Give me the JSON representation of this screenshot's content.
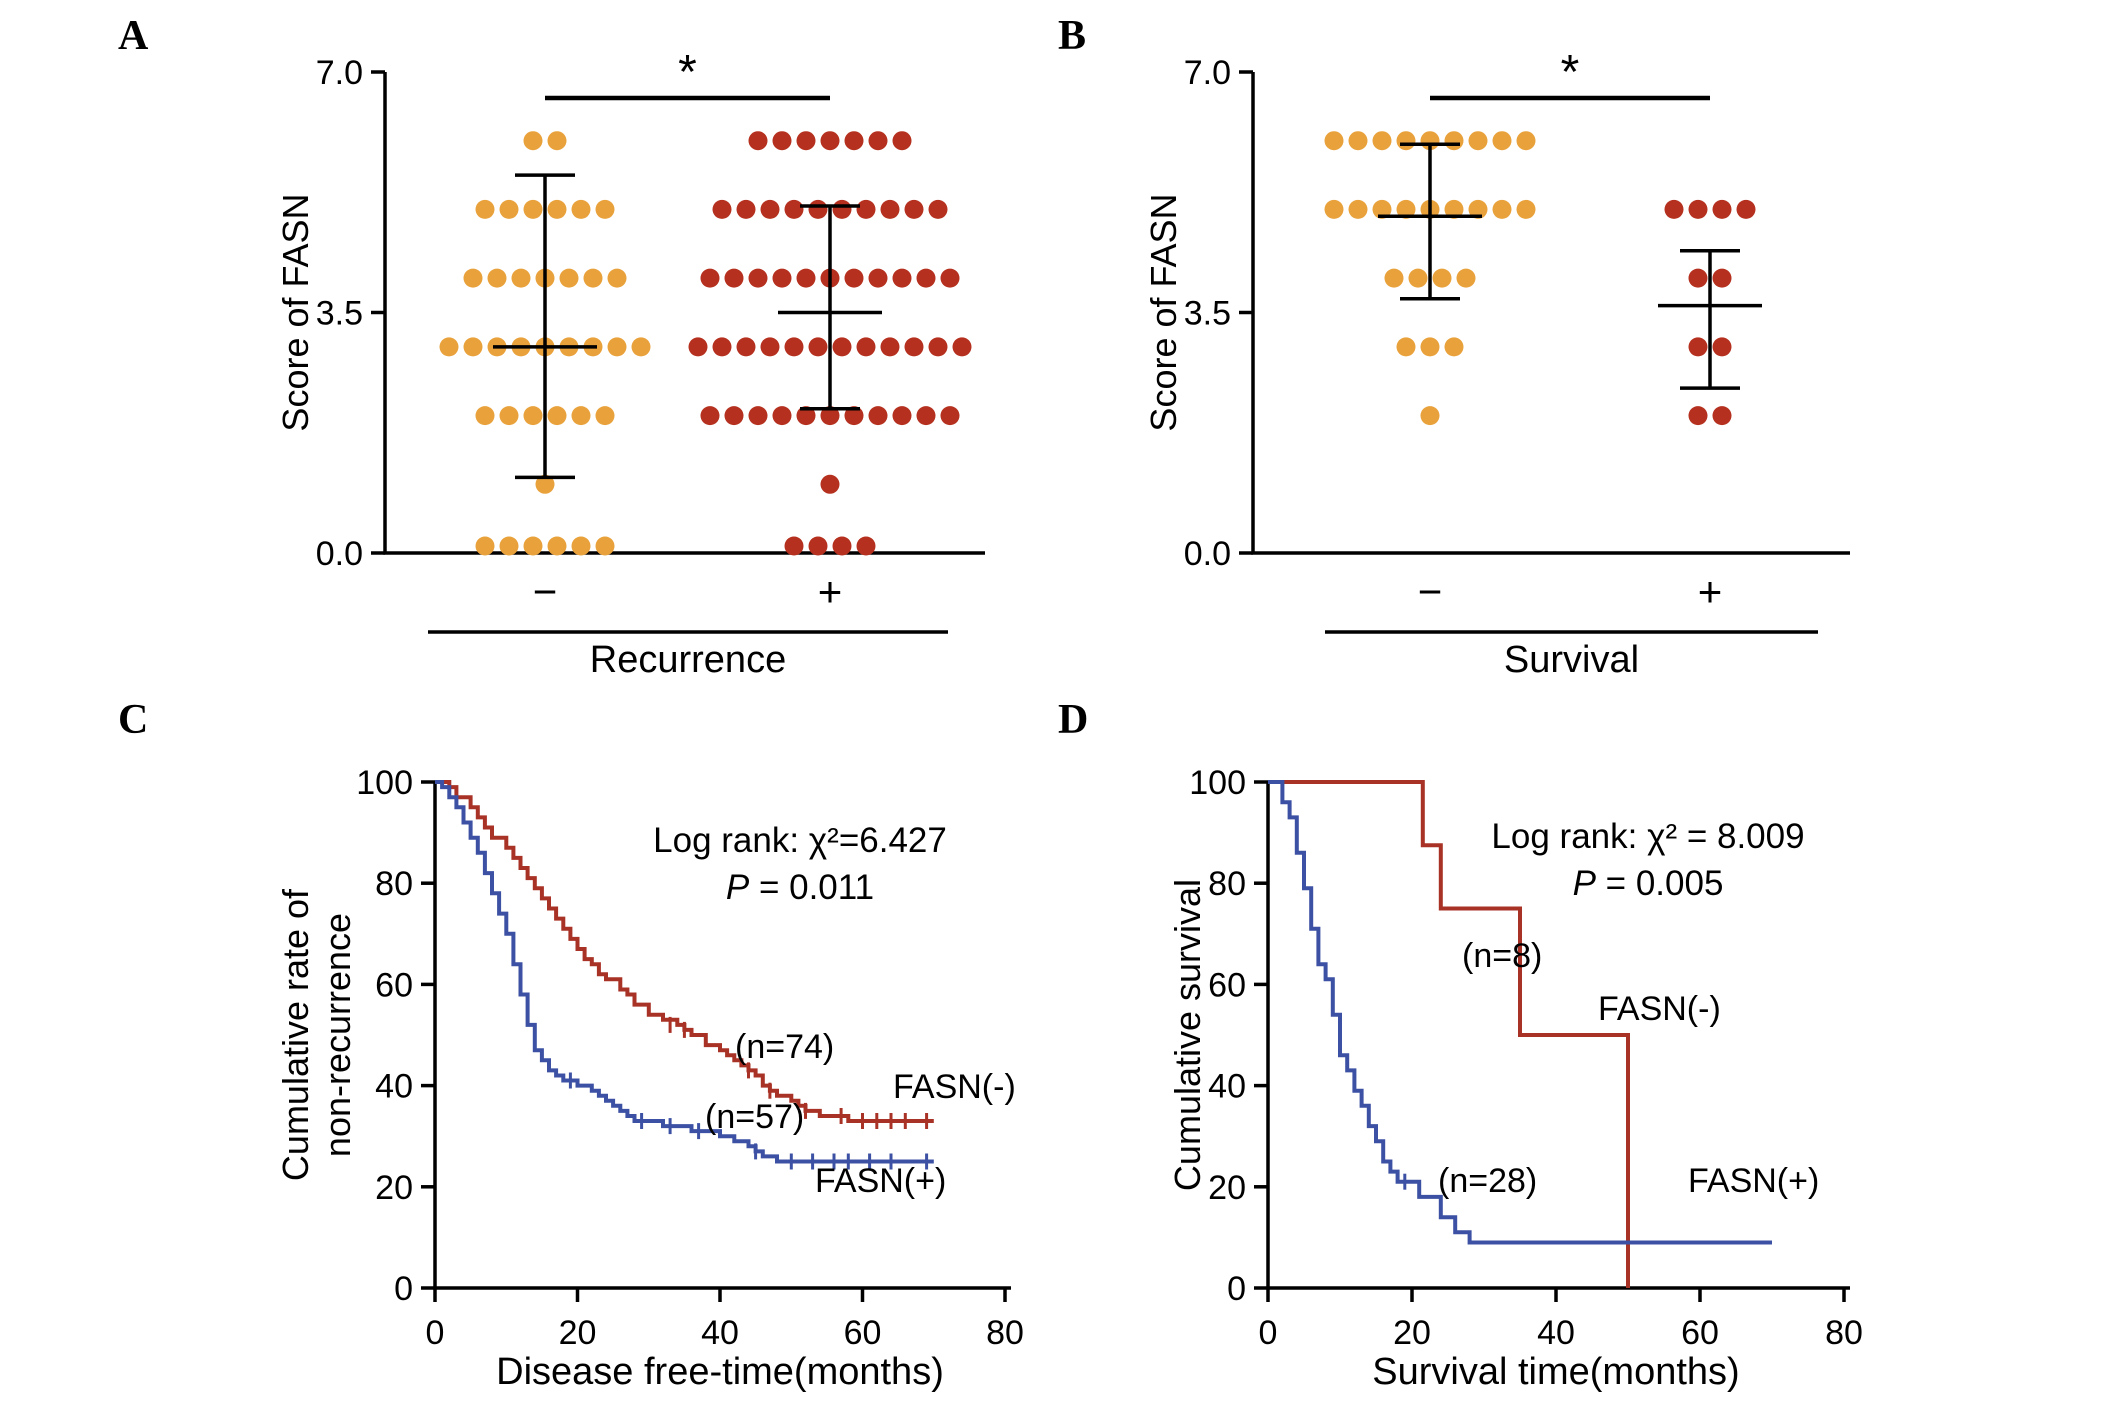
{
  "panel_letters": [
    "A",
    "B",
    "C",
    "D"
  ],
  "colors": {
    "orange_dot": "#E9A23B",
    "red_dot": "#B5301E",
    "red_curve": "#A93226",
    "blue_curve": "#3C51A3",
    "axis": "#000000",
    "text": "#000000"
  },
  "chart_data": [
    {
      "panel_letter": "A",
      "type": "scatter",
      "ylabel": "Score of FASN",
      "ylim": [
        0,
        7
      ],
      "yticks": [
        0,
        3.5,
        7
      ],
      "ytick_labels": [
        "0.0",
        "3.5",
        "7.0"
      ],
      "xlabel": "Recurrence",
      "significance": "*",
      "groups": [
        {
          "label": "−",
          "color_key": "orange_dot",
          "dot_rows": [
            [
              6,
              2
            ],
            [
              5,
              6
            ],
            [
              4,
              7
            ],
            [
              3,
              9
            ],
            [
              2,
              6
            ],
            [
              1,
              1
            ],
            [
              0,
              6
            ]
          ],
          "mean": 3.0,
          "upper": 5.5,
          "lower": 1.1
        },
        {
          "label": "+",
          "color_key": "red_dot",
          "dot_rows": [
            [
              6,
              7
            ],
            [
              5,
              10
            ],
            [
              4,
              11
            ],
            [
              3,
              12
            ],
            [
              2,
              11
            ],
            [
              1,
              1
            ],
            [
              0,
              4
            ]
          ],
          "mean": 3.5,
          "upper": 5.05,
          "lower": 2.1
        }
      ]
    },
    {
      "panel_letter": "B",
      "type": "scatter",
      "ylabel": "Score of FASN",
      "ylim": [
        0,
        7
      ],
      "yticks": [
        0,
        3.5,
        7
      ],
      "ytick_labels": [
        "0.0",
        "3.5",
        "7.0"
      ],
      "xlabel": "Survival",
      "significance": "*",
      "groups": [
        {
          "label": "−",
          "color_key": "orange_dot",
          "dot_rows": [
            [
              6,
              9
            ],
            [
              5,
              9
            ],
            [
              4,
              4
            ],
            [
              3,
              3
            ],
            [
              2,
              1
            ]
          ],
          "mean": 4.9,
          "upper": 5.95,
          "lower": 3.7
        },
        {
          "label": "+",
          "color_key": "red_dot",
          "dot_rows": [
            [
              5,
              4
            ],
            [
              4,
              2
            ],
            [
              3,
              2
            ],
            [
              2,
              2
            ]
          ],
          "mean": 3.6,
          "upper": 4.4,
          "lower": 2.4
        }
      ]
    },
    {
      "panel_letter": "C",
      "type": "km",
      "ylabel_lines": [
        "Cumulative rate of",
        "non-recurrence"
      ],
      "xlabel": "Disease free-time(months)",
      "xlim": [
        0,
        80
      ],
      "ylim": [
        0,
        100
      ],
      "xticks": [
        0,
        20,
        40,
        60,
        80
      ],
      "yticks": [
        0,
        20,
        40,
        60,
        80,
        100
      ],
      "annotation_lines": [
        "Log rank: χ²=6.427",
        "P = 0.011"
      ],
      "series": [
        {
          "name": "FASN(-)",
          "n_label": "(n=74)",
          "color_key": "red_curve",
          "points": [
            [
              0,
              100
            ],
            [
              2,
              99
            ],
            [
              3,
              97
            ],
            [
              5,
              95
            ],
            [
              6,
              93
            ],
            [
              7,
              91
            ],
            [
              8,
              89
            ],
            [
              10,
              87
            ],
            [
              11,
              85
            ],
            [
              12,
              83
            ],
            [
              13,
              81
            ],
            [
              14,
              79
            ],
            [
              15,
              77
            ],
            [
              16,
              75
            ],
            [
              17,
              73
            ],
            [
              18,
              71
            ],
            [
              19,
              69
            ],
            [
              20,
              67
            ],
            [
              21,
              65
            ],
            [
              22,
              64
            ],
            [
              23,
              62
            ],
            [
              24,
              61
            ],
            [
              26,
              59
            ],
            [
              27,
              58
            ],
            [
              28,
              56
            ],
            [
              30,
              54
            ],
            [
              32,
              53
            ],
            [
              34,
              52
            ],
            [
              35,
              51
            ],
            [
              36,
              50
            ],
            [
              38,
              48
            ],
            [
              40,
              47
            ],
            [
              41,
              46
            ],
            [
              42,
              45
            ],
            [
              43,
              44
            ],
            [
              44,
              43
            ],
            [
              45,
              42
            ],
            [
              46,
              40
            ],
            [
              47,
              39
            ],
            [
              48,
              38
            ],
            [
              50,
              37
            ],
            [
              51,
              36
            ],
            [
              52,
              35
            ],
            [
              54,
              34
            ],
            [
              58,
              33
            ],
            [
              70,
              33
            ]
          ],
          "censor": [
            [
              33,
              52
            ],
            [
              35,
              51
            ],
            [
              44,
              43
            ],
            [
              47,
              39
            ],
            [
              52,
              35
            ],
            [
              57,
              34
            ],
            [
              60,
              33
            ],
            [
              62,
              33
            ],
            [
              64,
              33
            ],
            [
              66,
              33
            ],
            [
              69,
              33
            ]
          ]
        },
        {
          "name": "FASN(+)",
          "n_label": "(n=57)",
          "color_key": "blue_curve",
          "points": [
            [
              0,
              100
            ],
            [
              1,
              99
            ],
            [
              2,
              97
            ],
            [
              3,
              95
            ],
            [
              4,
              92
            ],
            [
              5,
              89
            ],
            [
              6,
              86
            ],
            [
              7,
              82
            ],
            [
              8,
              78
            ],
            [
              9,
              74
            ],
            [
              10,
              70
            ],
            [
              11,
              64
            ],
            [
              12,
              58
            ],
            [
              13,
              52
            ],
            [
              14,
              47
            ],
            [
              15,
              45
            ],
            [
              16,
              43
            ],
            [
              17,
              42
            ],
            [
              18,
              41
            ],
            [
              20,
              40
            ],
            [
              22,
              39
            ],
            [
              23,
              38
            ],
            [
              24,
              37
            ],
            [
              25,
              36
            ],
            [
              26,
              35
            ],
            [
              27,
              34
            ],
            [
              28,
              33
            ],
            [
              31,
              33
            ],
            [
              32,
              32
            ],
            [
              35,
              32
            ],
            [
              36,
              31
            ],
            [
              39,
              31
            ],
            [
              40,
              30
            ],
            [
              42,
              29
            ],
            [
              44,
              28
            ],
            [
              45,
              27
            ],
            [
              46,
              26
            ],
            [
              48,
              25
            ],
            [
              70,
              25
            ]
          ],
          "censor": [
            [
              19,
              41
            ],
            [
              29,
              33
            ],
            [
              33,
              32
            ],
            [
              37,
              31
            ],
            [
              45,
              27
            ],
            [
              50,
              25
            ],
            [
              53,
              25
            ],
            [
              56,
              25
            ],
            [
              58,
              25
            ],
            [
              61,
              25
            ],
            [
              64,
              25
            ],
            [
              69,
              25
            ]
          ]
        }
      ]
    },
    {
      "panel_letter": "D",
      "type": "km",
      "ylabel_lines": [
        "Cumulative survival"
      ],
      "xlabel": "Survival time(months)",
      "xlim": [
        0,
        80
      ],
      "ylim": [
        0,
        100
      ],
      "xticks": [
        0,
        20,
        40,
        60,
        80
      ],
      "yticks": [
        0,
        20,
        40,
        60,
        80,
        100
      ],
      "annotation_lines": [
        "Log rank: χ² = 8.009",
        "P = 0.005"
      ],
      "series": [
        {
          "name": "FASN(-)",
          "n_label": "(n=8)",
          "color_key": "red_curve",
          "points": [
            [
              0,
              100
            ],
            [
              21.5,
              100
            ],
            [
              21.5,
              87.5
            ],
            [
              24,
              87.5
            ],
            [
              24,
              75
            ],
            [
              35,
              75
            ],
            [
              35,
              50
            ],
            [
              50,
              50
            ],
            [
              50,
              0
            ]
          ],
          "censor": []
        },
        {
          "name": "FASN(+)",
          "n_label": "(n=28)",
          "color_key": "blue_curve",
          "points": [
            [
              0,
              100
            ],
            [
              2,
              100
            ],
            [
              2,
              96
            ],
            [
              3,
              93
            ],
            [
              4,
              89
            ],
            [
              4,
              86
            ],
            [
              5,
              82
            ],
            [
              5,
              79
            ],
            [
              6,
              75
            ],
            [
              6,
              71
            ],
            [
              7,
              68
            ],
            [
              7,
              64
            ],
            [
              8,
              61
            ],
            [
              9,
              57
            ],
            [
              9,
              54
            ],
            [
              10,
              50
            ],
            [
              10,
              46
            ],
            [
              11,
              43
            ],
            [
              12,
              39
            ],
            [
              13,
              36
            ],
            [
              14,
              32
            ],
            [
              15,
              29
            ],
            [
              16,
              25
            ],
            [
              17,
              23
            ],
            [
              18,
              21
            ],
            [
              20,
              21
            ],
            [
              21,
              18
            ],
            [
              23,
              18
            ],
            [
              24,
              14
            ],
            [
              26,
              11
            ],
            [
              28,
              9
            ],
            [
              70,
              9
            ]
          ],
          "censor": [
            [
              19,
              21
            ]
          ]
        }
      ]
    }
  ]
}
